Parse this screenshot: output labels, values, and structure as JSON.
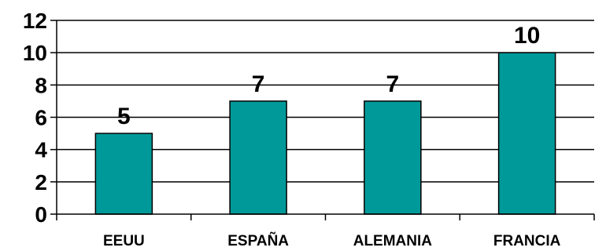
{
  "chart_data": {
    "type": "bar",
    "title": "",
    "xlabel": "",
    "ylabel": "",
    "categories": [
      "EEUU",
      "ESPAÑA",
      "ALEMANIA",
      "FRANCIA"
    ],
    "values": [
      5,
      7,
      7,
      10
    ],
    "ylim": [
      0,
      12
    ],
    "yticks": [
      0,
      2,
      4,
      6,
      8,
      10,
      12
    ],
    "ytick_labels": [
      "0",
      "2",
      "4",
      "6",
      "8",
      "10",
      "12"
    ],
    "data_labels": [
      "5",
      "7",
      "7",
      "10"
    ],
    "grid": true,
    "legend": "none",
    "bar_color": "#009999",
    "bar_edge_color": "#000000",
    "gridline_color": "#000000"
  }
}
